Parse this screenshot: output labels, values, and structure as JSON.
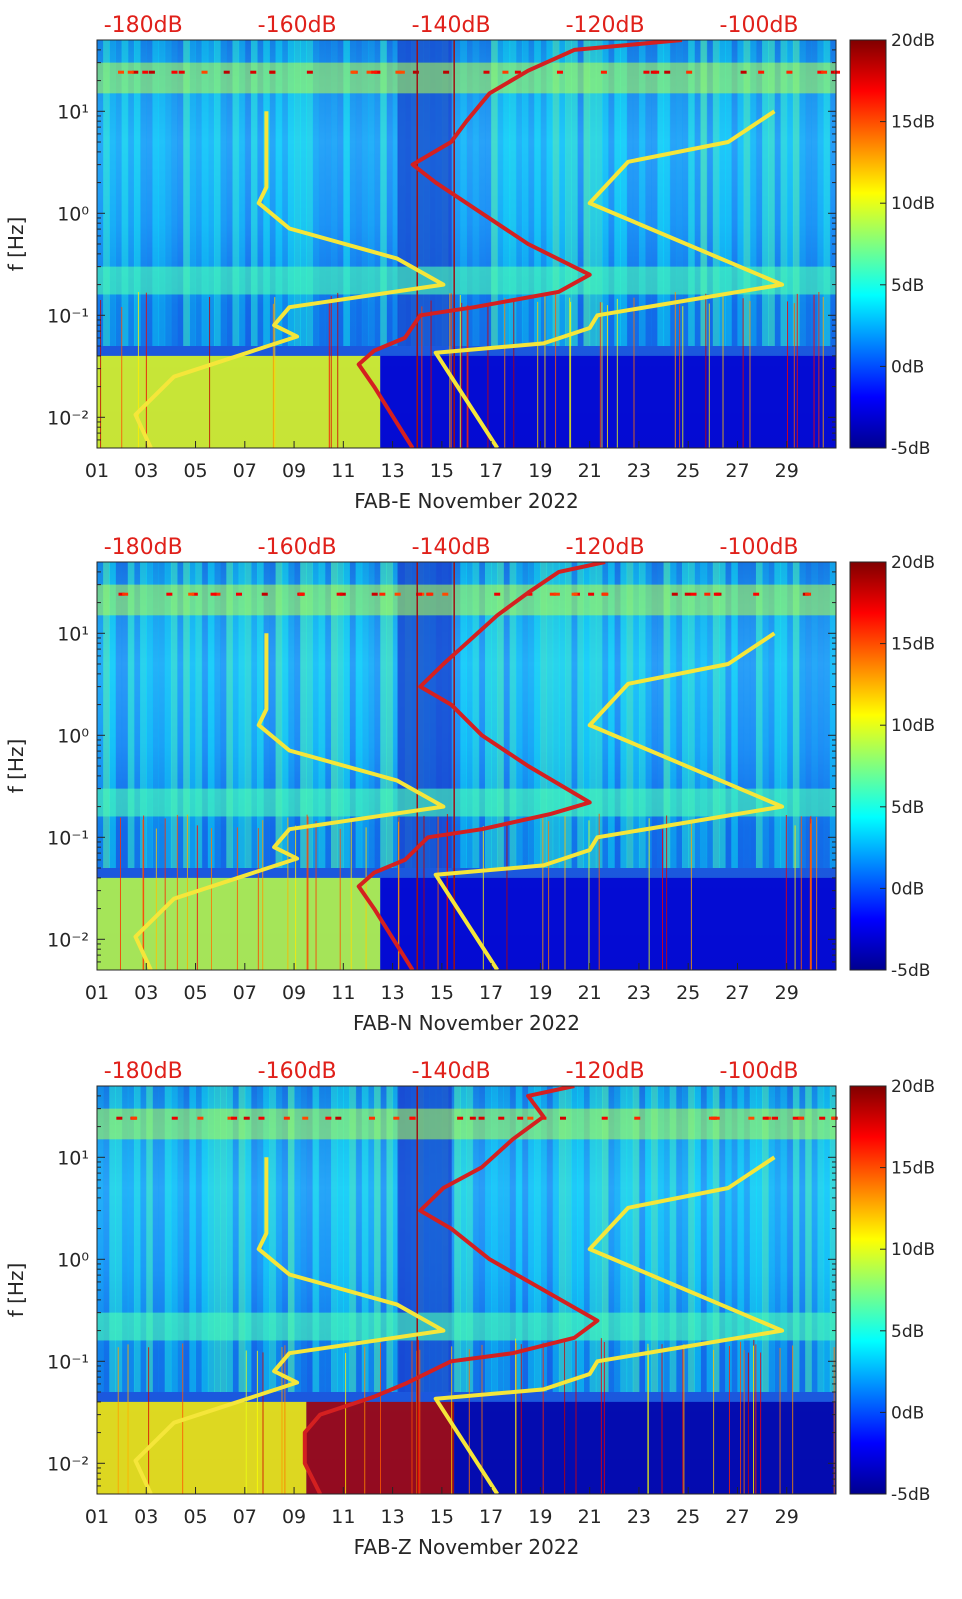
{
  "colors": {
    "background": "#ffffff",
    "axis": "#262626",
    "red_curve": "#d42020",
    "yellow_curve": "#f5e63a",
    "top_label": "#e0201a",
    "vertical_line": "#a01010"
  },
  "chart_data": [
    {
      "type": "heatmap",
      "title": "",
      "xlabel": "FAB-E November 2022",
      "ylabel": "f [Hz]",
      "x_ticks": [
        "01",
        "03",
        "05",
        "07",
        "09",
        "11",
        "13",
        "15",
        "17",
        "19",
        "21",
        "23",
        "25",
        "27",
        "29"
      ],
      "x_range_days": [
        1,
        31
      ],
      "y_scale": "log",
      "ylim": [
        0.005,
        50
      ],
      "y_ticks": [
        {
          "label": "10⁻²",
          "value": 0.01
        },
        {
          "label": "10⁻¹",
          "value": 0.1
        },
        {
          "label": "10⁰",
          "value": 1
        },
        {
          "label": "10¹",
          "value": 10
        }
      ],
      "colorbar": {
        "ticks": [
          "20dB",
          "15dB",
          "10dB",
          "5dB",
          "0dB",
          "-5dB"
        ],
        "range": [
          -5,
          20
        ],
        "colormap": "jet"
      },
      "top_axis": {
        "ticks": [
          "-180dB",
          "-160dB",
          "-140dB",
          "-120dB",
          "-100dB"
        ],
        "range": [
          -186,
          -90
        ]
      },
      "noise_model_curves": {
        "low_model_dB": {
          "color": "yellow",
          "points": [
            [
              0.005,
              -179
            ],
            [
              0.0106,
              -181
            ],
            [
              0.025,
              -176
            ],
            [
              0.062,
              -160
            ],
            [
              0.08,
              -163
            ],
            [
              0.12,
              -161
            ],
            [
              0.2,
              -141
            ],
            [
              0.36,
              -147
            ],
            [
              0.71,
              -161
            ],
            [
              1.26,
              -165
            ],
            [
              1.8,
              -164
            ],
            [
              10,
              -164
            ]
          ]
        },
        "high_model_dB": {
          "color": "yellow",
          "points": [
            [
              0.005,
              -134
            ],
            [
              0.043,
              -142
            ],
            [
              0.053,
              -128
            ],
            [
              0.075,
              -122
            ],
            [
              0.1,
              -121
            ],
            [
              0.2,
              -97
            ],
            [
              1.26,
              -122
            ],
            [
              3.2,
              -117
            ],
            [
              5,
              -104
            ],
            [
              10,
              -98
            ]
          ]
        },
        "station_psd_dB": {
          "color": "red",
          "points": [
            [
              0.005,
              -145
            ],
            [
              0.02,
              -150
            ],
            [
              0.033,
              -152
            ],
            [
              0.045,
              -150
            ],
            [
              0.06,
              -146
            ],
            [
              0.1,
              -144
            ],
            [
              0.12,
              -137
            ],
            [
              0.17,
              -126
            ],
            [
              0.25,
              -122
            ],
            [
              0.5,
              -130
            ],
            [
              1.0,
              -136
            ],
            [
              2.0,
              -142
            ],
            [
              3.0,
              -145
            ],
            [
              5.0,
              -140
            ],
            [
              8.0,
              -138
            ],
            [
              15,
              -135
            ],
            [
              25,
              -130
            ],
            [
              40,
              -124
            ],
            [
              50,
              -110
            ]
          ]
        }
      },
      "vertical_marker_days": [
        14.0,
        15.5
      ],
      "time_blocks": [
        {
          "start_day": 1,
          "end_day": 12.5,
          "low_freq_level_dB": 10
        },
        {
          "start_day": 12.5,
          "end_day": 31,
          "low_freq_level_dB": -3
        }
      ]
    },
    {
      "type": "heatmap",
      "title": "",
      "xlabel": "FAB-N November 2022",
      "ylabel": "f [Hz]",
      "x_ticks": [
        "01",
        "03",
        "05",
        "07",
        "09",
        "11",
        "13",
        "15",
        "17",
        "19",
        "21",
        "23",
        "25",
        "27",
        "29"
      ],
      "x_range_days": [
        1,
        31
      ],
      "y_scale": "log",
      "ylim": [
        0.005,
        50
      ],
      "y_ticks": [
        {
          "label": "10⁻²",
          "value": 0.01
        },
        {
          "label": "10⁻¹",
          "value": 0.1
        },
        {
          "label": "10⁰",
          "value": 1
        },
        {
          "label": "10¹",
          "value": 10
        }
      ],
      "colorbar": {
        "ticks": [
          "20dB",
          "15dB",
          "10dB",
          "5dB",
          "0dB",
          "-5dB"
        ],
        "range": [
          -5,
          20
        ],
        "colormap": "jet"
      },
      "top_axis": {
        "ticks": [
          "-180dB",
          "-160dB",
          "-140dB",
          "-120dB",
          "-100dB"
        ],
        "range": [
          -186,
          -90
        ]
      },
      "noise_model_curves": {
        "low_model_dB": {
          "color": "yellow",
          "points": [
            [
              0.005,
              -179
            ],
            [
              0.0106,
              -181
            ],
            [
              0.025,
              -176
            ],
            [
              0.062,
              -160
            ],
            [
              0.08,
              -163
            ],
            [
              0.12,
              -161
            ],
            [
              0.2,
              -141
            ],
            [
              0.36,
              -147
            ],
            [
              0.71,
              -161
            ],
            [
              1.26,
              -165
            ],
            [
              1.8,
              -164
            ],
            [
              10,
              -164
            ]
          ]
        },
        "high_model_dB": {
          "color": "yellow",
          "points": [
            [
              0.005,
              -134
            ],
            [
              0.043,
              -142
            ],
            [
              0.053,
              -128
            ],
            [
              0.075,
              -122
            ],
            [
              0.1,
              -121
            ],
            [
              0.2,
              -97
            ],
            [
              1.26,
              -122
            ],
            [
              3.2,
              -117
            ],
            [
              5,
              -104
            ],
            [
              10,
              -98
            ]
          ]
        },
        "station_psd_dB": {
          "color": "red",
          "points": [
            [
              0.005,
              -145
            ],
            [
              0.02,
              -150
            ],
            [
              0.033,
              -152
            ],
            [
              0.045,
              -150
            ],
            [
              0.06,
              -146
            ],
            [
              0.1,
              -143
            ],
            [
              0.12,
              -136
            ],
            [
              0.17,
              -127
            ],
            [
              0.22,
              -122
            ],
            [
              0.5,
              -130
            ],
            [
              1.0,
              -136
            ],
            [
              2.0,
              -140
            ],
            [
              3.0,
              -144
            ],
            [
              5.0,
              -141
            ],
            [
              8.0,
              -138
            ],
            [
              15,
              -134
            ],
            [
              25,
              -130
            ],
            [
              40,
              -126
            ],
            [
              50,
              -120
            ]
          ]
        }
      },
      "vertical_marker_days": [
        14.0,
        15.5
      ],
      "time_blocks": [
        {
          "start_day": 1,
          "end_day": 12.5,
          "low_freq_level_dB": 9
        },
        {
          "start_day": 12.5,
          "end_day": 31,
          "low_freq_level_dB": -3
        }
      ]
    },
    {
      "type": "heatmap",
      "title": "",
      "xlabel": "FAB-Z November 2022",
      "ylabel": "f [Hz]",
      "x_ticks": [
        "01",
        "03",
        "05",
        "07",
        "09",
        "11",
        "13",
        "15",
        "17",
        "19",
        "21",
        "23",
        "25",
        "27",
        "29"
      ],
      "x_range_days": [
        1,
        31
      ],
      "y_scale": "log",
      "ylim": [
        0.005,
        50
      ],
      "y_ticks": [
        {
          "label": "10⁻²",
          "value": 0.01
        },
        {
          "label": "10⁻¹",
          "value": 0.1
        },
        {
          "label": "10⁰",
          "value": 1
        },
        {
          "label": "10¹",
          "value": 10
        }
      ],
      "colorbar": {
        "ticks": [
          "20dB",
          "15dB",
          "10dB",
          "5dB",
          "0dB",
          "-5dB"
        ],
        "range": [
          -5,
          20
        ],
        "colormap": "jet"
      },
      "top_axis": {
        "ticks": [
          "-180dB",
          "-160dB",
          "-140dB",
          "-120dB",
          "-100dB"
        ],
        "range": [
          -186,
          -90
        ]
      },
      "noise_model_curves": {
        "low_model_dB": {
          "color": "yellow",
          "points": [
            [
              0.005,
              -179
            ],
            [
              0.0106,
              -181
            ],
            [
              0.025,
              -176
            ],
            [
              0.062,
              -160
            ],
            [
              0.08,
              -163
            ],
            [
              0.12,
              -161
            ],
            [
              0.2,
              -141
            ],
            [
              0.36,
              -147
            ],
            [
              0.71,
              -161
            ],
            [
              1.26,
              -165
            ],
            [
              1.8,
              -164
            ],
            [
              10,
              -164
            ]
          ]
        },
        "high_model_dB": {
          "color": "yellow",
          "points": [
            [
              0.005,
              -134
            ],
            [
              0.043,
              -142
            ],
            [
              0.053,
              -128
            ],
            [
              0.075,
              -122
            ],
            [
              0.1,
              -121
            ],
            [
              0.2,
              -97
            ],
            [
              1.26,
              -122
            ],
            [
              3.2,
              -117
            ],
            [
              5,
              -104
            ],
            [
              10,
              -98
            ]
          ]
        },
        "station_psd_dB": {
          "color": "red",
          "points": [
            [
              0.005,
              -157
            ],
            [
              0.01,
              -159
            ],
            [
              0.02,
              -159
            ],
            [
              0.03,
              -157
            ],
            [
              0.045,
              -150
            ],
            [
              0.06,
              -146
            ],
            [
              0.1,
              -140
            ],
            [
              0.12,
              -132
            ],
            [
              0.17,
              -124
            ],
            [
              0.25,
              -121
            ],
            [
              0.5,
              -128
            ],
            [
              1.0,
              -135
            ],
            [
              2.0,
              -140
            ],
            [
              3.0,
              -144
            ],
            [
              5.0,
              -141
            ],
            [
              8.0,
              -136
            ],
            [
              15,
              -132
            ],
            [
              25,
              -128
            ],
            [
              40,
              -130
            ],
            [
              50,
              -124
            ]
          ]
        }
      },
      "vertical_marker_days": [
        14.0
      ],
      "time_blocks": [
        {
          "start_day": 1,
          "end_day": 9.5,
          "low_freq_level_dB": 11
        },
        {
          "start_day": 9.5,
          "end_day": 15.5,
          "low_freq_level_dB": 19
        },
        {
          "start_day": 15.5,
          "end_day": 31,
          "low_freq_level_dB": -4
        }
      ]
    }
  ]
}
